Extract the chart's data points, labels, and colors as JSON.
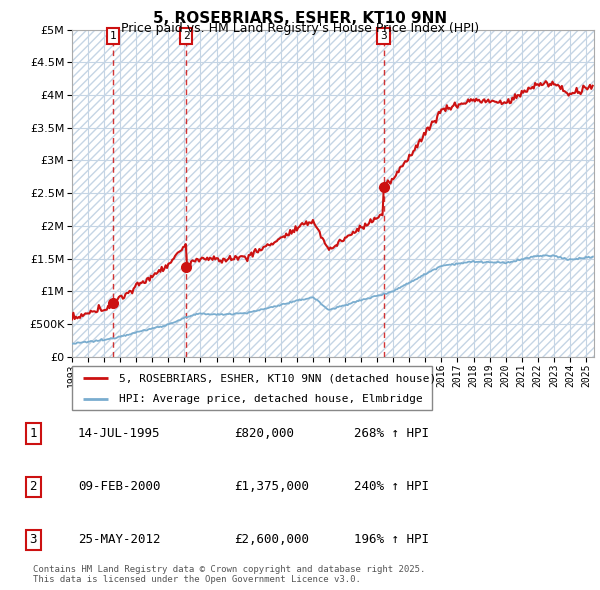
{
  "title": "5, ROSEBRIARS, ESHER, KT10 9NN",
  "subtitle": "Price paid vs. HM Land Registry's House Price Index (HPI)",
  "ylim": [
    0,
    5000000
  ],
  "yticks": [
    0,
    500000,
    1000000,
    1500000,
    2000000,
    2500000,
    3000000,
    3500000,
    4000000,
    4500000,
    5000000
  ],
  "xlim_start": 1993,
  "xlim_end": 2025.5,
  "sale_dates": [
    1995.54,
    2000.11,
    2012.4
  ],
  "sale_prices": [
    820000,
    1375000,
    2600000
  ],
  "sale_labels": [
    "1",
    "2",
    "3"
  ],
  "hpi_color": "#7aadcf",
  "price_color": "#cc1111",
  "table_rows": [
    [
      "1",
      "14-JUL-1995",
      "£820,000",
      "268% ↑ HPI"
    ],
    [
      "2",
      "09-FEB-2000",
      "£1,375,000",
      "240% ↑ HPI"
    ],
    [
      "3",
      "25-MAY-2012",
      "£2,600,000",
      "196% ↑ HPI"
    ]
  ],
  "legend_entries": [
    "5, ROSEBRIARS, ESHER, KT10 9NN (detached house)",
    "HPI: Average price, detached house, Elmbridge"
  ],
  "footer": "Contains HM Land Registry data © Crown copyright and database right 2025.\nThis data is licensed under the Open Government Licence v3.0."
}
